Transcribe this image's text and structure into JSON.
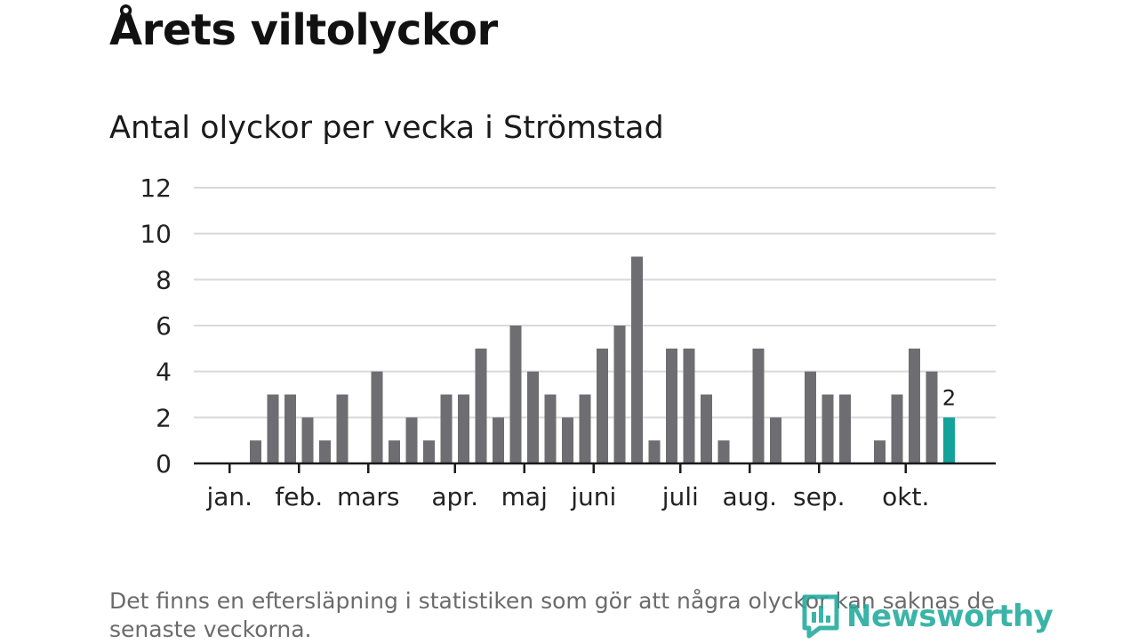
{
  "title": "Årets viltolyckor",
  "footnote": "Det finns en eftersläpning i statistiken som gör att några olyckor kan saknas de senaste veckorna.",
  "logo": {
    "text": "Newsworthy",
    "icon": "newsworthy-logo-icon"
  },
  "colors": {
    "bar": "#6e6d72",
    "highlight": "#12a39a",
    "grid": "#d9d9d9",
    "axis": "#1a1a1a",
    "logo": "#1aa89a"
  },
  "chart_data": {
    "type": "bar",
    "title": "Antal olyckor per vecka i Strömstad",
    "xlabel": "",
    "ylabel": "",
    "ylim": [
      0,
      12
    ],
    "yticks": [
      0,
      2,
      4,
      6,
      8,
      10,
      12
    ],
    "grid": true,
    "weeks": [
      1,
      2,
      3,
      4,
      5,
      6,
      7,
      8,
      9,
      10,
      11,
      12,
      13,
      14,
      15,
      16,
      17,
      18,
      19,
      20,
      21,
      22,
      23,
      24,
      25,
      26,
      27,
      28,
      29,
      30,
      31,
      32,
      33,
      34,
      35,
      36,
      37,
      38,
      39,
      40,
      41,
      42,
      43
    ],
    "values": [
      0,
      0,
      1,
      3,
      3,
      2,
      1,
      3,
      0,
      4,
      1,
      2,
      1,
      3,
      3,
      5,
      2,
      6,
      4,
      3,
      2,
      3,
      5,
      6,
      9,
      1,
      5,
      5,
      3,
      1,
      0,
      5,
      2,
      0,
      4,
      3,
      3,
      0,
      1,
      3,
      5,
      4,
      2
    ],
    "highlight_index": 42,
    "highlight_label": "2",
    "month_labels": [
      {
        "label": "jan.",
        "week": 1.5
      },
      {
        "label": "feb.",
        "week": 5.5
      },
      {
        "label": "mars",
        "week": 9.5
      },
      {
        "label": "apr.",
        "week": 14.5
      },
      {
        "label": "maj",
        "week": 18.5
      },
      {
        "label": "juni",
        "week": 22.5
      },
      {
        "label": "juli",
        "week": 27.5
      },
      {
        "label": "aug.",
        "week": 31.5
      },
      {
        "label": "sep.",
        "week": 35.5
      },
      {
        "label": "okt.",
        "week": 40.5
      }
    ]
  }
}
